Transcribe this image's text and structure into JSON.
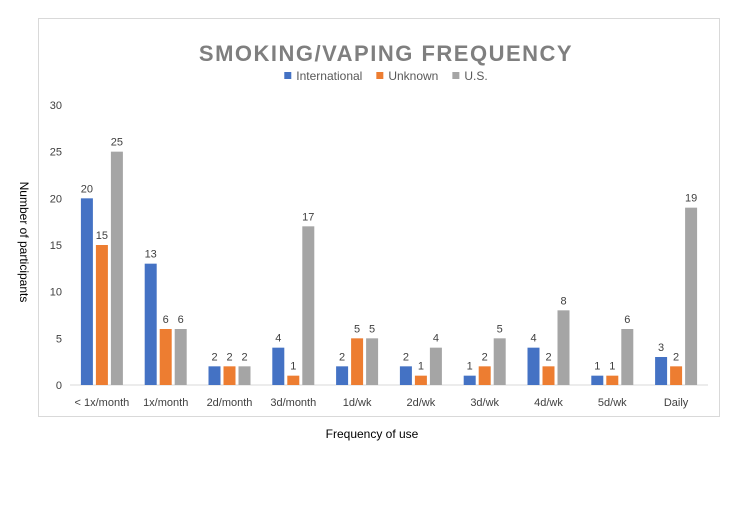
{
  "chart_data": {
    "type": "bar",
    "title": "SMOKING/VAPING FREQUENCY",
    "xlabel": "Frequency of use",
    "ylabel": "Number of participants",
    "ylim": [
      0,
      30
    ],
    "yticks": [
      0,
      5,
      10,
      15,
      20,
      25,
      30
    ],
    "grid": false,
    "legend_position": "top",
    "categories": [
      "< 1x/month",
      "1x/month",
      "2d/month",
      "3d/month",
      "1d/wk",
      "2d/wk",
      "3d/wk",
      "4d/wk",
      "5d/wk",
      "Daily"
    ],
    "series": [
      {
        "name": "International",
        "color": "#4472c4",
        "values": [
          20,
          13,
          2,
          4,
          2,
          2,
          1,
          4,
          1,
          3
        ]
      },
      {
        "name": "Unknown",
        "color": "#ed7d31",
        "values": [
          15,
          6,
          2,
          1,
          5,
          1,
          2,
          2,
          1,
          2
        ]
      },
      {
        "name": "U.S.",
        "color": "#a5a5a5",
        "values": [
          25,
          6,
          2,
          17,
          5,
          4,
          5,
          8,
          6,
          19
        ]
      }
    ]
  }
}
